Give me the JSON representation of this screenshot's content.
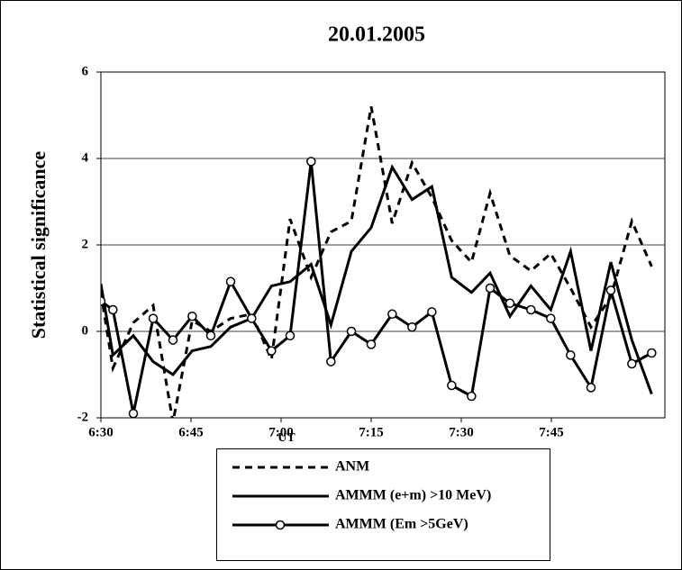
{
  "chart_data": {
    "type": "line",
    "title": "20.01.2005",
    "x_label": "UT",
    "y_label": "Statistical significance",
    "x": [
      390,
      392,
      395.4,
      398.7,
      402,
      405.2,
      408.3,
      411.6,
      415.1,
      418.4,
      421.5,
      425,
      428.3,
      431.7,
      435,
      438.5,
      441.8,
      445.1,
      448.4,
      451.7,
      454.8,
      458.1,
      461.6,
      464.9,
      468.2,
      471.6,
      474.9,
      478.4,
      481.7
    ],
    "series": [
      {
        "name": "ANM",
        "color": "#000000",
        "style": "dashed",
        "values": [
          0.9,
          -0.85,
          0.2,
          0.6,
          -2.1,
          0.25,
          0,
          0.3,
          0.4,
          -0.65,
          2.6,
          1.25,
          2.3,
          2.55,
          5.2,
          2.5,
          3.9,
          3.1,
          2.1,
          1.6,
          3.2,
          1.75,
          1.4,
          1.8,
          1.0,
          0.1,
          0.8,
          2.55,
          1.5
        ]
      },
      {
        "name": "AMMM (e+m) >10 MeV)",
        "color": "#000000",
        "style": "solid",
        "values": [
          1.1,
          -0.55,
          -0.1,
          -0.7,
          -1.0,
          -0.45,
          -0.35,
          0.1,
          0.3,
          1.05,
          1.15,
          1.55,
          0.15,
          1.85,
          2.4,
          3.8,
          3.05,
          3.35,
          1.25,
          0.9,
          1.35,
          0.35,
          1.05,
          0.5,
          1.85,
          -0.45,
          1.6,
          -0.2,
          -1.45
        ]
      },
      {
        "name": "AMMM (Em >5GeV)",
        "color": "#000000",
        "style": "solid",
        "marker": "circle",
        "values": [
          0.7,
          0.5,
          -1.9,
          0.3,
          -0.2,
          0.35,
          -0.1,
          1.15,
          0.3,
          -0.45,
          -0.1,
          3.93,
          -0.7,
          0,
          -0.3,
          0.4,
          0.1,
          0.45,
          -1.25,
          -1.5,
          1.0,
          0.65,
          0.5,
          0.3,
          -0.55,
          -1.3,
          0.95,
          -0.75,
          -0.5
        ]
      }
    ],
    "xlim": [
      390,
      483.9
    ],
    "xticks": [
      {
        "value": 390,
        "label": "6:30"
      },
      {
        "value": 405,
        "label": "6:45"
      },
      {
        "value": 420,
        "label": "7:00"
      },
      {
        "value": 435,
        "label": "7:15"
      },
      {
        "value": 450,
        "label": "7:30"
      },
      {
        "value": 465,
        "label": "7:45"
      }
    ],
    "ylim": [
      -2,
      6
    ],
    "yticks": [
      -2,
      0,
      2,
      4,
      6
    ],
    "grid": true
  }
}
